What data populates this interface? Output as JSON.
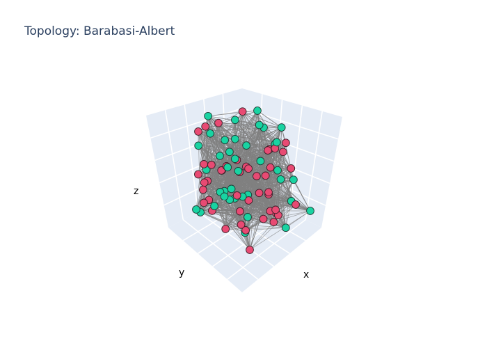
{
  "chart_data": {
    "type": "scatter",
    "projection": "3d",
    "title": "Topology: Barabasi-Albert",
    "axes": {
      "x": {
        "label": "x",
        "showticklabels": false
      },
      "y": {
        "label": "y",
        "showticklabels": false
      },
      "z": {
        "label": "z",
        "showticklabels": false
      }
    },
    "scene": {
      "background": "#e5ecf6",
      "gridcolor": "#ffffff",
      "grid": true
    },
    "edges": {
      "color": "#808080",
      "description": "dense web of grey edges connecting all nodes"
    },
    "node_groups": [
      {
        "color": "#19d3a2",
        "outline": "#1f3a33"
      },
      {
        "color": "#e84a73",
        "outline": "#3a1f27"
      }
    ],
    "seed": 7,
    "visible_node_count": 80
  }
}
